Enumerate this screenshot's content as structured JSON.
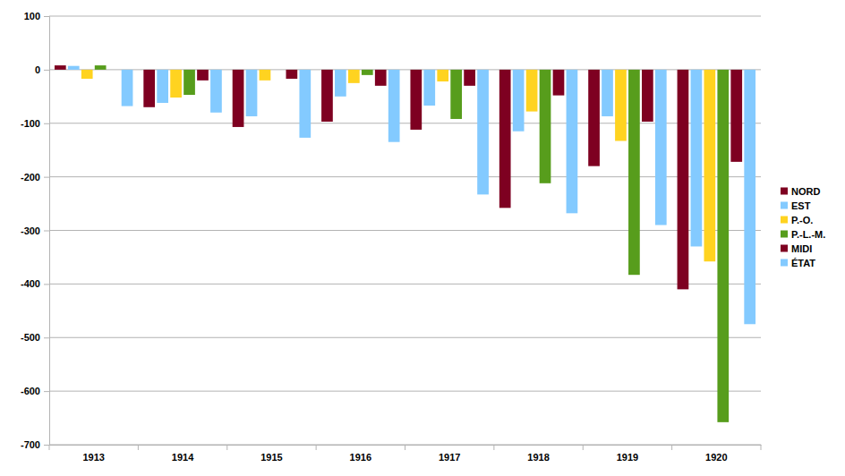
{
  "chart_data": {
    "type": "bar",
    "categories": [
      "1913",
      "1914",
      "1915",
      "1916",
      "1917",
      "1918",
      "1919",
      "1920"
    ],
    "series": [
      {
        "name": "NORD",
        "color": "#7e0021",
        "values": [
          8,
          -70,
          -107,
          -97,
          -112,
          -258,
          -180,
          -410
        ]
      },
      {
        "name": "EST",
        "color": "#83caff",
        "values": [
          7,
          -62,
          -87,
          -50,
          -67,
          -115,
          -87,
          -330
        ]
      },
      {
        "name": "P.-O.",
        "color": "#ffd320",
        "values": [
          -17,
          -52,
          -20,
          -25,
          -22,
          -78,
          -133,
          -358
        ]
      },
      {
        "name": "P.-L.-M.",
        "color": "#579d1c",
        "values": [
          8,
          -47,
          0,
          -10,
          -92,
          -212,
          -383,
          -658
        ]
      },
      {
        "name": "MIDI",
        "color": "#7e0021",
        "values": [
          0,
          -20,
          -17,
          -30,
          -30,
          -48,
          -97,
          -172
        ]
      },
      {
        "name": "ÉTAT",
        "color": "#83caff",
        "values": [
          -68,
          -80,
          -127,
          -135,
          -233,
          -268,
          -290,
          -475
        ]
      }
    ],
    "ylim": [
      -700,
      100
    ],
    "yticks": [
      -700,
      -600,
      -500,
      -400,
      -300,
      -200,
      -100,
      0,
      100
    ],
    "grid": true,
    "legend": "right"
  }
}
